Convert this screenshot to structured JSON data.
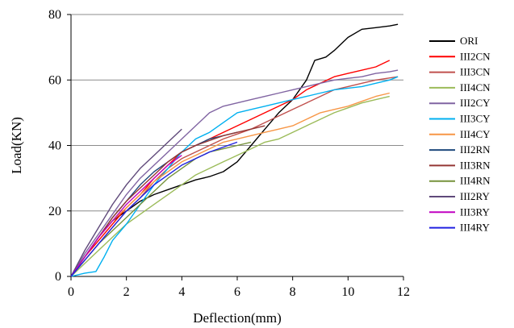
{
  "chart_data": {
    "type": "line",
    "xlabel": "Deflection(mm)",
    "ylabel": "Load(KN)",
    "xlim": [
      0,
      12
    ],
    "ylim": [
      0,
      80
    ],
    "xticks": [
      0,
      2,
      4,
      6,
      8,
      10,
      12
    ],
    "yticks": [
      0,
      20,
      40,
      60,
      80
    ],
    "grid": "horizontal",
    "legend_position": "right",
    "series": [
      {
        "name": "ORI",
        "color": "#000000",
        "points": [
          [
            0,
            0
          ],
          [
            0.5,
            6
          ],
          [
            1,
            12
          ],
          [
            1.5,
            17
          ],
          [
            2,
            20
          ],
          [
            2.5,
            23
          ],
          [
            3,
            25
          ],
          [
            3.5,
            26.5
          ],
          [
            4,
            28
          ],
          [
            4.5,
            29.5
          ],
          [
            5,
            30.5
          ],
          [
            5.5,
            32
          ],
          [
            6,
            35
          ],
          [
            6.5,
            40
          ],
          [
            7,
            45
          ],
          [
            7.5,
            50
          ],
          [
            8,
            54
          ],
          [
            8.5,
            60
          ],
          [
            8.8,
            66
          ],
          [
            9.2,
            67
          ],
          [
            9.5,
            69
          ],
          [
            10,
            73
          ],
          [
            10.5,
            75.5
          ],
          [
            11,
            76
          ],
          [
            11.5,
            76.5
          ],
          [
            11.8,
            77
          ]
        ]
      },
      {
        "name": "III2CN",
        "color": "#ff0000",
        "points": [
          [
            0,
            0
          ],
          [
            0.5,
            6
          ],
          [
            1,
            11
          ],
          [
            1.5,
            16
          ],
          [
            2,
            21
          ],
          [
            2.5,
            25
          ],
          [
            3,
            30
          ],
          [
            3.5,
            34
          ],
          [
            4,
            38
          ],
          [
            4.5,
            40
          ],
          [
            5,
            42
          ],
          [
            5.5,
            44
          ],
          [
            6,
            46
          ],
          [
            6.5,
            48
          ],
          [
            7,
            50
          ],
          [
            7.5,
            52
          ],
          [
            8,
            54
          ],
          [
            8.5,
            57
          ],
          [
            9,
            59
          ],
          [
            9.5,
            61
          ],
          [
            10,
            62
          ],
          [
            10.5,
            63
          ],
          [
            11,
            64
          ],
          [
            11.5,
            66
          ]
        ]
      },
      {
        "name": "III3CN",
        "color": "#c0504d",
        "points": [
          [
            0,
            0
          ],
          [
            0.5,
            5
          ],
          [
            1,
            10
          ],
          [
            1.5,
            15
          ],
          [
            2,
            20
          ],
          [
            2.5,
            24
          ],
          [
            3,
            29
          ],
          [
            3.5,
            33
          ],
          [
            4,
            36
          ],
          [
            4.5,
            38
          ],
          [
            5,
            40
          ],
          [
            5.5,
            42
          ],
          [
            6,
            43.5
          ],
          [
            6.5,
            45
          ],
          [
            7,
            47
          ],
          [
            7.5,
            49
          ],
          [
            8,
            51
          ],
          [
            8.5,
            53
          ],
          [
            9,
            55
          ],
          [
            9.5,
            57
          ],
          [
            10,
            58
          ],
          [
            10.5,
            59
          ],
          [
            11,
            60
          ],
          [
            11.8,
            61
          ]
        ]
      },
      {
        "name": "III4CN",
        "color": "#9bbb59",
        "points": [
          [
            0,
            0
          ],
          [
            0.5,
            4
          ],
          [
            1,
            8
          ],
          [
            1.5,
            12
          ],
          [
            2,
            16
          ],
          [
            2.5,
            19
          ],
          [
            3,
            22
          ],
          [
            3.5,
            25
          ],
          [
            4,
            28
          ],
          [
            4.5,
            31
          ],
          [
            5,
            33
          ],
          [
            5.5,
            35
          ],
          [
            6,
            37
          ],
          [
            6.5,
            39
          ],
          [
            7,
            41
          ],
          [
            7.5,
            42
          ],
          [
            8,
            44
          ],
          [
            8.5,
            46
          ],
          [
            9,
            48
          ],
          [
            9.5,
            50
          ],
          [
            10,
            51.5
          ],
          [
            10.5,
            53
          ],
          [
            11,
            54
          ],
          [
            11.5,
            55
          ]
        ]
      },
      {
        "name": "III2CY",
        "color": "#8064a2",
        "points": [
          [
            0,
            0
          ],
          [
            0.5,
            7
          ],
          [
            1,
            13
          ],
          [
            1.5,
            19
          ],
          [
            2,
            25
          ],
          [
            2.5,
            30
          ],
          [
            3,
            34
          ],
          [
            3.5,
            38
          ],
          [
            4,
            42
          ],
          [
            4.5,
            46
          ],
          [
            5,
            50
          ],
          [
            5.5,
            52
          ],
          [
            6,
            53
          ],
          [
            6.5,
            54
          ],
          [
            7,
            55
          ],
          [
            7.5,
            56
          ],
          [
            8,
            57
          ],
          [
            8.5,
            58
          ],
          [
            9,
            59
          ],
          [
            9.5,
            60
          ],
          [
            10,
            60.5
          ],
          [
            10.5,
            61
          ],
          [
            11,
            62
          ],
          [
            11.5,
            62.5
          ],
          [
            11.8,
            63
          ]
        ]
      },
      {
        "name": "III3CY",
        "color": "#00b0f0",
        "points": [
          [
            0,
            0
          ],
          [
            0.5,
            1
          ],
          [
            0.9,
            1.5
          ],
          [
            1.2,
            6
          ],
          [
            1.5,
            11
          ],
          [
            2,
            16
          ],
          [
            2.5,
            22
          ],
          [
            3,
            28
          ],
          [
            3.5,
            33
          ],
          [
            4,
            38
          ],
          [
            4.5,
            42
          ],
          [
            5,
            44
          ],
          [
            5.5,
            47
          ],
          [
            6,
            50
          ],
          [
            6.5,
            51
          ],
          [
            7,
            52
          ],
          [
            7.5,
            53
          ],
          [
            8,
            54
          ],
          [
            8.5,
            55
          ],
          [
            9,
            56
          ],
          [
            9.5,
            57
          ],
          [
            10,
            57.5
          ],
          [
            10.5,
            58
          ],
          [
            11,
            59
          ],
          [
            11.5,
            60
          ],
          [
            11.8,
            61
          ]
        ]
      },
      {
        "name": "III4CY",
        "color": "#f79646",
        "points": [
          [
            0,
            0
          ],
          [
            0.5,
            6
          ],
          [
            1,
            12
          ],
          [
            1.5,
            17
          ],
          [
            2,
            21
          ],
          [
            2.5,
            25
          ],
          [
            3,
            29
          ],
          [
            3.5,
            32
          ],
          [
            4,
            35
          ],
          [
            4.5,
            37
          ],
          [
            5,
            39
          ],
          [
            5.5,
            41
          ],
          [
            6,
            42
          ],
          [
            6.5,
            43
          ],
          [
            7,
            44
          ],
          [
            7.5,
            45
          ],
          [
            8,
            46
          ],
          [
            8.5,
            48
          ],
          [
            9,
            50
          ],
          [
            9.5,
            51
          ],
          [
            10,
            52
          ],
          [
            10.5,
            53.5
          ],
          [
            11,
            55
          ],
          [
            11.5,
            56
          ]
        ]
      },
      {
        "name": "III2RN",
        "color": "#1f497d",
        "points": [
          [
            0,
            0
          ],
          [
            0.5,
            6
          ],
          [
            1,
            12
          ],
          [
            1.5,
            18
          ],
          [
            2,
            23
          ],
          [
            2.5,
            28
          ],
          [
            3,
            32
          ],
          [
            3.5,
            35
          ],
          [
            4,
            38
          ],
          [
            4.5,
            40
          ],
          [
            5,
            42
          ],
          [
            5.5,
            43
          ],
          [
            6,
            44
          ]
        ]
      },
      {
        "name": "III3RN",
        "color": "#943634",
        "points": [
          [
            0,
            0
          ],
          [
            0.5,
            6
          ],
          [
            1,
            12
          ],
          [
            1.5,
            18
          ],
          [
            2,
            23
          ],
          [
            2.5,
            27
          ],
          [
            3,
            31
          ],
          [
            3.5,
            35
          ],
          [
            4,
            38
          ],
          [
            4.5,
            40
          ],
          [
            5,
            41.5
          ],
          [
            5.5,
            43
          ],
          [
            6,
            44
          ],
          [
            6.5,
            45
          ],
          [
            7,
            46
          ]
        ]
      },
      {
        "name": "III4RN",
        "color": "#76923c",
        "points": [
          [
            0,
            0
          ],
          [
            0.5,
            5
          ],
          [
            1,
            10
          ],
          [
            1.5,
            14
          ],
          [
            2,
            18
          ],
          [
            2.5,
            22
          ],
          [
            3,
            26
          ],
          [
            3.5,
            30
          ],
          [
            4,
            33
          ],
          [
            4.5,
            36
          ],
          [
            5,
            38
          ],
          [
            5.5,
            39
          ],
          [
            6,
            40
          ],
          [
            6.5,
            41
          ]
        ]
      },
      {
        "name": "III2RY",
        "color": "#5f497a",
        "points": [
          [
            0,
            0
          ],
          [
            0.5,
            8
          ],
          [
            1,
            15
          ],
          [
            1.5,
            22
          ],
          [
            2,
            28
          ],
          [
            2.5,
            33
          ],
          [
            3,
            37
          ],
          [
            3.5,
            41
          ],
          [
            4,
            45
          ]
        ]
      },
      {
        "name": "III3RY",
        "color": "#c000c0",
        "points": [
          [
            0,
            0
          ],
          [
            0.5,
            6
          ],
          [
            1,
            12
          ],
          [
            1.5,
            17
          ],
          [
            2,
            22
          ],
          [
            2.5,
            26
          ],
          [
            3,
            30
          ],
          [
            3.5,
            34
          ],
          [
            4,
            37
          ]
        ]
      },
      {
        "name": "III4RY",
        "color": "#2020e0",
        "points": [
          [
            0,
            0
          ],
          [
            0.5,
            5
          ],
          [
            1,
            10
          ],
          [
            1.5,
            15
          ],
          [
            2,
            20
          ],
          [
            2.5,
            24
          ],
          [
            3,
            28
          ],
          [
            3.5,
            31
          ],
          [
            4,
            34
          ],
          [
            4.5,
            36
          ],
          [
            5,
            38
          ],
          [
            5.5,
            39.5
          ],
          [
            6,
            41
          ]
        ]
      }
    ]
  }
}
